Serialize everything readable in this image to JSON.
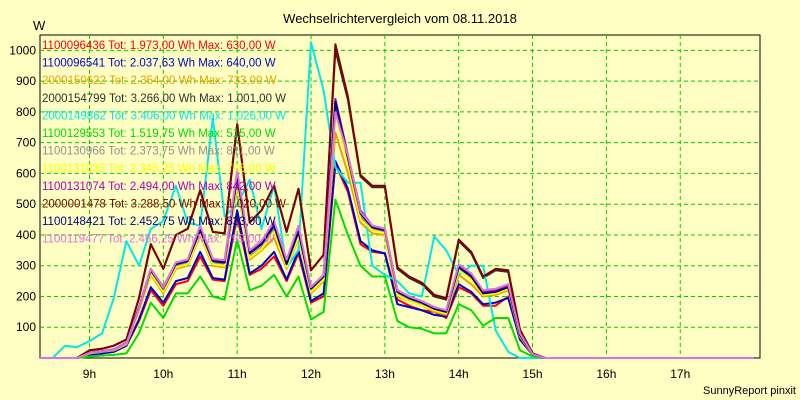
{
  "chart_data": {
    "type": "line",
    "title": "Wechselrichtervergleich vom 08.11.2018",
    "ylabel": "W",
    "xlabel": "",
    "footer": "SunnyReport pinxit",
    "ylim": [
      0,
      1050
    ],
    "xlim": [
      8.33,
      18.08
    ],
    "yticks": [
      100,
      200,
      300,
      400,
      500,
      600,
      700,
      800,
      900,
      1000
    ],
    "xticks": [
      {
        "value": 9,
        "label": "9h"
      },
      {
        "value": 10,
        "label": "10h"
      },
      {
        "value": 11,
        "label": "11h"
      },
      {
        "value": 12,
        "label": "12h"
      },
      {
        "value": 13,
        "label": "13h"
      },
      {
        "value": 14,
        "label": "14h"
      },
      {
        "value": 15,
        "label": "15h"
      },
      {
        "value": 16,
        "label": "16h"
      },
      {
        "value": 17,
        "label": "17h"
      }
    ],
    "grid": true,
    "legend_position": "top-left",
    "x": [
      8.33,
      8.5,
      8.67,
      8.83,
      9.0,
      9.17,
      9.33,
      9.5,
      9.67,
      9.83,
      10.0,
      10.17,
      10.33,
      10.5,
      10.67,
      10.83,
      11.0,
      11.17,
      11.33,
      11.5,
      11.67,
      11.83,
      12.0,
      12.17,
      12.33,
      12.5,
      12.67,
      12.83,
      13.0,
      13.17,
      13.33,
      13.5,
      13.67,
      13.83,
      14.0,
      14.17,
      14.33,
      14.5,
      14.67,
      14.83,
      15.0,
      15.17,
      15.33,
      15.5,
      15.67,
      15.83,
      16.0,
      16.17,
      16.33,
      16.5,
      16.67,
      16.83,
      17.0,
      17.17,
      17.33,
      17.5,
      17.67,
      17.83,
      18.0
    ],
    "series": [
      {
        "name": "1100096436 Tot: 1.973,00 Wh Max: 630,00 W",
        "color": "#ff0000",
        "values": [
          0,
          0,
          0,
          0,
          10,
          15,
          20,
          40,
          120,
          220,
          170,
          240,
          250,
          330,
          255,
          250,
          460,
          270,
          290,
          330,
          250,
          340,
          180,
          200,
          630,
          540,
          370,
          345,
          340,
          190,
          170,
          155,
          150,
          130,
          230,
          210,
          170,
          170,
          200,
          60,
          10,
          0,
          0,
          0,
          0,
          0,
          0,
          0,
          0,
          0,
          0,
          0,
          0,
          0,
          0,
          0,
          0,
          0,
          0
        ]
      },
      {
        "name": "1100096541 Tot: 2.037,63 Wh Max: 640,00 W",
        "color": "#0000d0",
        "values": [
          0,
          0,
          0,
          0,
          10,
          15,
          20,
          40,
          125,
          230,
          180,
          250,
          260,
          345,
          260,
          255,
          480,
          275,
          300,
          345,
          255,
          350,
          185,
          210,
          640,
          550,
          380,
          350,
          340,
          175,
          165,
          155,
          140,
          135,
          240,
          215,
          175,
          180,
          195,
          60,
          10,
          0,
          0,
          0,
          0,
          0,
          0,
          0,
          0,
          0,
          0,
          0,
          0,
          0,
          0,
          0,
          0,
          0,
          0
        ]
      },
      {
        "name": "2000150622 Tot: 2.354,00 Wh Max: 733,00 W",
        "color": "#e8a000",
        "values": [
          0,
          0,
          0,
          0,
          15,
          20,
          25,
          45,
          150,
          270,
          210,
          290,
          300,
          400,
          300,
          295,
          560,
          320,
          350,
          390,
          290,
          390,
          210,
          250,
          733,
          600,
          440,
          405,
          400,
          200,
          185,
          170,
          150,
          140,
          270,
          240,
          200,
          205,
          220,
          70,
          10,
          0,
          0,
          0,
          0,
          0,
          0,
          0,
          0,
          0,
          0,
          0,
          0,
          0,
          0,
          0,
          0,
          0,
          0
        ]
      },
      {
        "name": "2000154799 Tot: 3.266,00 Wh Max: 1.001,00 W",
        "color": "#303030",
        "values": [
          0,
          0,
          0,
          0,
          25,
          30,
          40,
          60,
          195,
          370,
          290,
          400,
          420,
          545,
          410,
          405,
          760,
          440,
          480,
          560,
          410,
          550,
          285,
          335,
          1001,
          840,
          590,
          555,
          555,
          290,
          260,
          240,
          200,
          190,
          380,
          340,
          260,
          285,
          280,
          90,
          15,
          0,
          0,
          0,
          0,
          0,
          0,
          0,
          0,
          0,
          0,
          0,
          0,
          0,
          0,
          0,
          0,
          0,
          0
        ]
      },
      {
        "name": "2000149862 Tot: 3.406,00 Wh Max: 1.026,00 W",
        "color": "#00e8e8",
        "values": [
          0,
          0,
          40,
          35,
          55,
          80,
          195,
          380,
          300,
          420,
          445,
          560,
          440,
          430,
          780,
          460,
          500,
          580,
          420,
          560,
          295,
          350,
          1026,
          870,
          620,
          570,
          570,
          300,
          270,
          250,
          210,
          200,
          395,
          350,
          270,
          300,
          300,
          90,
          20,
          0,
          0,
          0,
          0,
          0,
          0,
          0,
          0,
          0,
          0,
          0,
          0,
          0,
          0,
          0,
          0,
          0,
          0,
          0,
          0
        ]
      },
      {
        "name": "1100129553 Tot: 1.519,75 Wh Max: 515,00 W",
        "color": "#00dd00",
        "values": [
          0,
          0,
          0,
          0,
          5,
          8,
          10,
          15,
          80,
          180,
          130,
          210,
          210,
          265,
          200,
          190,
          385,
          220,
          235,
          270,
          200,
          265,
          125,
          150,
          515,
          400,
          300,
          265,
          265,
          120,
          100,
          95,
          80,
          80,
          175,
          155,
          105,
          130,
          130,
          25,
          5,
          0,
          0,
          0,
          0,
          0,
          0,
          0,
          0,
          0,
          0,
          0,
          0,
          0,
          0,
          0,
          0,
          0,
          0
        ]
      },
      {
        "name": "1100130966 Tot: 2.373,75 Wh Max: 811,00 W",
        "color": "#909090",
        "values": [
          0,
          0,
          0,
          0,
          15,
          20,
          25,
          45,
          155,
          280,
          220,
          300,
          310,
          410,
          310,
          305,
          580,
          330,
          360,
          420,
          300,
          400,
          220,
          260,
          811,
          640,
          460,
          420,
          410,
          210,
          190,
          175,
          160,
          150,
          290,
          260,
          210,
          215,
          230,
          75,
          10,
          0,
          0,
          0,
          0,
          0,
          0,
          0,
          0,
          0,
          0,
          0,
          0,
          0,
          0,
          0,
          0,
          0,
          0
        ]
      },
      {
        "name": "1100131035 Tot: 2.345,25 Wh Max: 796,00 W",
        "color": "#ffff00",
        "values": [
          0,
          0,
          0,
          0,
          15,
          20,
          25,
          45,
          150,
          275,
          215,
          295,
          305,
          405,
          305,
          300,
          570,
          325,
          355,
          410,
          295,
          395,
          215,
          255,
          796,
          630,
          450,
          415,
          405,
          205,
          185,
          170,
          155,
          145,
          285,
          255,
          205,
          210,
          225,
          72,
          10,
          0,
          0,
          0,
          0,
          0,
          0,
          0,
          0,
          0,
          0,
          0,
          0,
          0,
          0,
          0,
          0,
          0,
          0
        ]
      },
      {
        "name": "1100131074 Tot: 2.494,00 Wh Max: 842,00 W",
        "color": "#b000b0",
        "values": [
          0,
          0,
          0,
          0,
          18,
          22,
          28,
          50,
          165,
          290,
          230,
          310,
          320,
          420,
          320,
          315,
          595,
          345,
          375,
          440,
          310,
          420,
          230,
          270,
          842,
          660,
          480,
          430,
          420,
          220,
          200,
          185,
          165,
          155,
          300,
          270,
          215,
          220,
          235,
          78,
          12,
          0,
          0,
          0,
          0,
          0,
          0,
          0,
          0,
          0,
          0,
          0,
          0,
          0,
          0,
          0,
          0,
          0,
          0
        ]
      },
      {
        "name": "2000001478 Tot: 3.288,50 Wh Max: 1.020,00 W",
        "color": "#800000",
        "values": [
          0,
          0,
          0,
          0,
          25,
          30,
          40,
          60,
          195,
          370,
          290,
          400,
          420,
          545,
          410,
          405,
          760,
          440,
          480,
          560,
          410,
          550,
          285,
          335,
          1020,
          850,
          595,
          560,
          560,
          295,
          265,
          245,
          205,
          195,
          385,
          345,
          265,
          290,
          285,
          92,
          15,
          0,
          0,
          0,
          0,
          0,
          0,
          0,
          0,
          0,
          0,
          0,
          0,
          0,
          0,
          0,
          0,
          0,
          0
        ]
      },
      {
        "name": "1100148421 Tot: 2.452,75 Wh Max: 833,00 W",
        "color": "#000080",
        "values": [
          0,
          0,
          0,
          0,
          17,
          21,
          27,
          48,
          160,
          285,
          225,
          305,
          315,
          415,
          315,
          310,
          590,
          340,
          370,
          430,
          305,
          410,
          225,
          265,
          833,
          650,
          470,
          425,
          415,
          215,
          195,
          180,
          160,
          150,
          295,
          265,
          210,
          215,
          230,
          75,
          11,
          0,
          0,
          0,
          0,
          0,
          0,
          0,
          0,
          0,
          0,
          0,
          0,
          0,
          0,
          0,
          0,
          0,
          0
        ]
      },
      {
        "name": "1100119477 Tot: 2.466,25 Wh Max: 799,00 W",
        "color": "#e070e0",
        "values": [
          0,
          0,
          0,
          0,
          17,
          21,
          27,
          48,
          160,
          290,
          228,
          310,
          320,
          430,
          322,
          318,
          610,
          350,
          380,
          445,
          320,
          430,
          230,
          270,
          799,
          660,
          475,
          430,
          420,
          220,
          200,
          185,
          165,
          155,
          305,
          275,
          220,
          225,
          240,
          80,
          12,
          0,
          0,
          0,
          0,
          0,
          0,
          0,
          0,
          0,
          0,
          0,
          0,
          0,
          0,
          0,
          0,
          0,
          0
        ]
      }
    ]
  }
}
